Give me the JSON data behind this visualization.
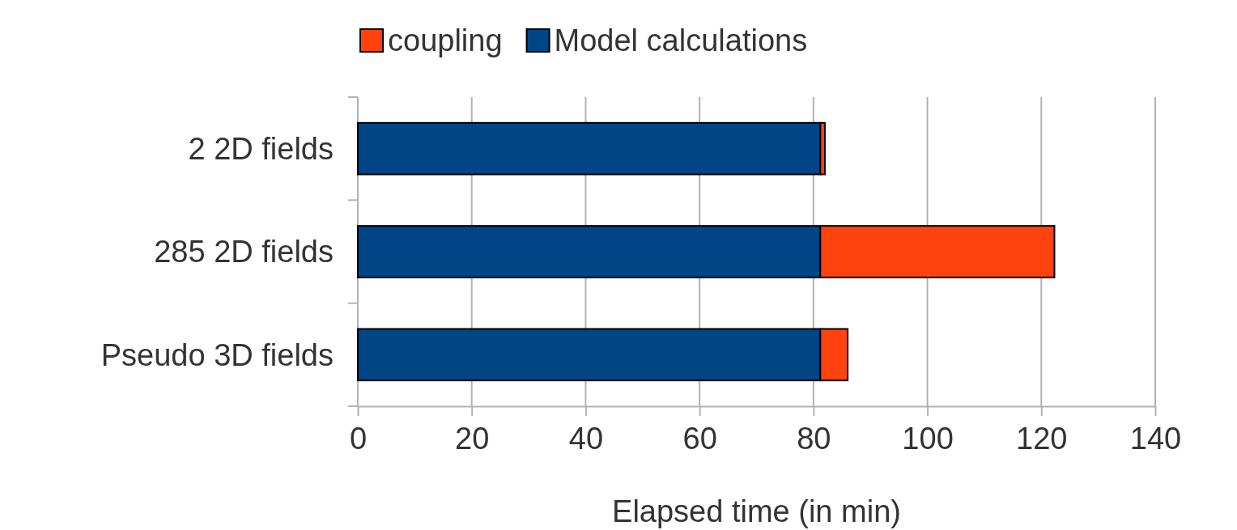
{
  "chart_data": {
    "type": "bar",
    "orientation": "horizontal",
    "stacked": true,
    "xlabel": "Elapsed time (in min)",
    "categories": [
      "2 2D fields",
      "285 2D fields",
      "Pseudo 3D fields"
    ],
    "series": [
      {
        "name": "Model calculations",
        "color": "#004586",
        "values": [
          81.2,
          81.2,
          81.2
        ]
      },
      {
        "name": "coupling",
        "color": "#ff420e",
        "values": [
          0.8,
          41.1,
          4.8
        ]
      }
    ],
    "xlim": [
      0,
      140
    ],
    "xticks": [
      0,
      20,
      40,
      60,
      80,
      100,
      120,
      140
    ],
    "grid": "x",
    "legend": "top"
  }
}
